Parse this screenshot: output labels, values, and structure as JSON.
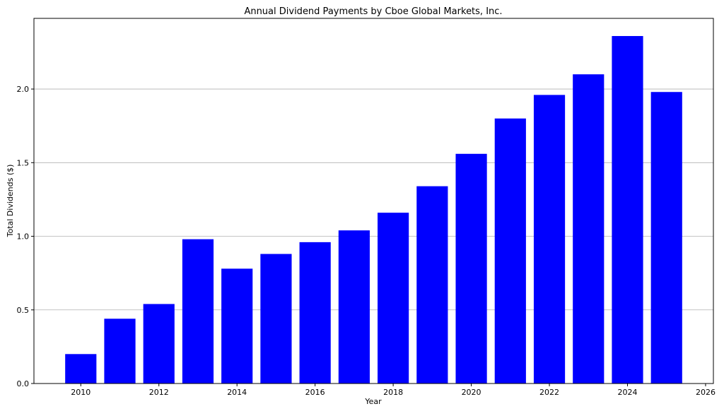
{
  "chart_data": {
    "type": "bar",
    "title": "Annual Dividend Payments by Cboe Global Markets, Inc.",
    "xlabel": "Year",
    "ylabel": "Total Dividends ($)",
    "categories": [
      2010,
      2011,
      2012,
      2013,
      2014,
      2015,
      2016,
      2017,
      2018,
      2019,
      2020,
      2021,
      2022,
      2023,
      2024,
      2025
    ],
    "values": [
      0.2,
      0.44,
      0.54,
      0.98,
      0.78,
      0.88,
      0.96,
      1.04,
      1.16,
      1.34,
      1.56,
      1.8,
      1.96,
      2.1,
      2.36,
      1.98
    ],
    "xlim": [
      2008.8,
      2026.2
    ],
    "ylim": [
      0,
      2.48
    ],
    "xticks": [
      "2010",
      "2012",
      "2014",
      "2016",
      "2018",
      "2020",
      "2022",
      "2024",
      "2026"
    ],
    "yticks": [
      "0.0",
      "0.5",
      "1.0",
      "1.5",
      "2.0"
    ],
    "grid": "horizontal",
    "bar_color": "#0000ff",
    "grid_color": "#b0b0b0",
    "frame_color": "#000000"
  }
}
